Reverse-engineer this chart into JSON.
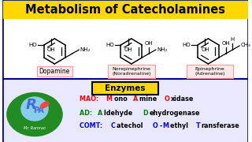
{
  "title": "Metabolism of Catecholamines",
  "title_bg": "#FFD700",
  "title_color": "#000000",
  "border_color": "#00008B",
  "upper_bg": "#FFFFFF",
  "lower_bg": "#E8E8FF",
  "enzymes_title": "Enzymes",
  "enzymes_title_bg": "#FFD700",
  "enzymes_title_border": "#000000",
  "label_box_edge": "#FF9999",
  "label_box_face": "#FFE8E8",
  "mao_parts": [
    [
      "MAO: ",
      "#FF0000"
    ],
    [
      "M",
      "#FF0000"
    ],
    [
      "ono ",
      "#000000"
    ],
    [
      "A",
      "#FF0000"
    ],
    [
      "mine ",
      "#000000"
    ],
    [
      "O",
      "#FF0000"
    ],
    [
      "xidase",
      "#000000"
    ]
  ],
  "ad_parts": [
    [
      "AD: ",
      "#008000"
    ],
    [
      "A",
      "#008000"
    ],
    [
      "ldehyde ",
      "#000000"
    ],
    [
      "D",
      "#008000"
    ],
    [
      "ehydrogenase",
      "#000000"
    ]
  ],
  "comt_parts": [
    [
      "COMT: ",
      "#0000FF"
    ],
    [
      "C",
      "#0000FF"
    ],
    [
      "atechol ",
      "#000000"
    ],
    [
      "O",
      "#0000FF"
    ],
    [
      "-",
      "#000000"
    ],
    [
      "M",
      "#0000FF"
    ],
    [
      "ethyl ",
      "#000000"
    ],
    [
      "T",
      "#0000FF"
    ],
    [
      "ransferase",
      "#000000"
    ]
  ],
  "logo_oval_color": "#228B22",
  "logo_r_color": "#4169E1",
  "logo_pa_color": "#4169E1",
  "logo_text_color": "#FFFFFF"
}
